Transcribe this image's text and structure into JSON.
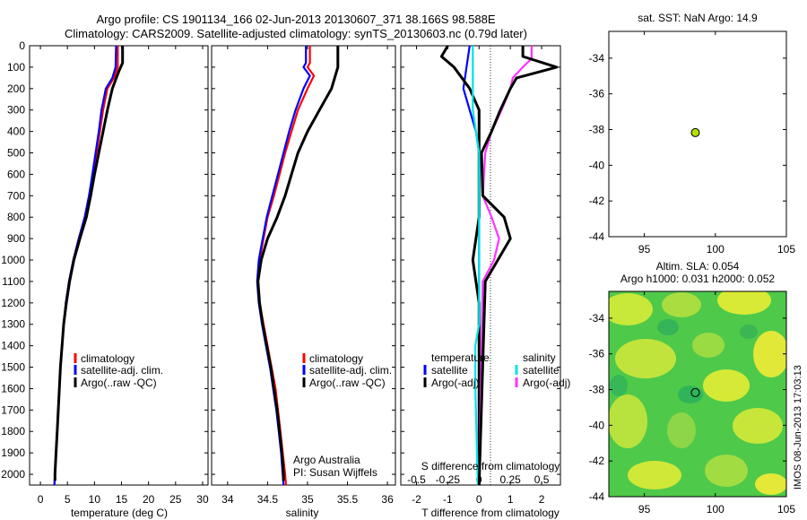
{
  "header": {
    "line1": "Argo profile: CS 1901134_166 02-Jun-2013 20130607_371 38.166S 98.588E",
    "line2": "Climatology: CARS2009. Satellite-adjusted climatology: synTS_20130603.nc (0.79d later)"
  },
  "colors": {
    "climatology": "#ff0000",
    "satellite": "#0000ff",
    "argo": "#000000",
    "salinity_sat": "#00e5e5",
    "salinity_argo": "#ff33ff",
    "marker": "#b0e000"
  },
  "credit": {
    "line1": "Argo Australia",
    "line2": "PI: Susan Wijffels"
  },
  "side_label": "IMOS 08-Jun-2013 17:03:13",
  "chart_data": [
    {
      "id": "temperature",
      "type": "line",
      "xlabel": "temperature (deg C)",
      "xlim": [
        -2,
        31
      ],
      "xticks": [
        0,
        5,
        10,
        15,
        20,
        25,
        30
      ],
      "ylim": [
        0,
        2050
      ],
      "yticks": [
        0,
        100,
        200,
        300,
        400,
        500,
        600,
        700,
        800,
        900,
        1000,
        1100,
        1200,
        1300,
        1400,
        1500,
        1600,
        1700,
        1800,
        1900,
        2000
      ],
      "legend": [
        "climatology",
        "satellite-adj. clim.",
        "Argo(..raw -QC)"
      ],
      "series": [
        {
          "name": "climatology",
          "color": "#ff0000",
          "points": [
            [
              14.3,
              0
            ],
            [
              14.3,
              100
            ],
            [
              13.6,
              150
            ],
            [
              12.4,
              200
            ],
            [
              11.6,
              300
            ],
            [
              11,
              400
            ],
            [
              10.4,
              500
            ],
            [
              9.7,
              600
            ],
            [
              9,
              700
            ],
            [
              8.2,
              800
            ],
            [
              7.1,
              900
            ],
            [
              6.1,
              1000
            ],
            [
              5.3,
              1100
            ],
            [
              4.7,
              1200
            ],
            [
              4.3,
              1300
            ],
            [
              4,
              1400
            ],
            [
              3.7,
              1500
            ],
            [
              3.5,
              1600
            ],
            [
              3.3,
              1700
            ],
            [
              3.1,
              1800
            ],
            [
              2.9,
              1900
            ],
            [
              2.7,
              2000
            ],
            [
              2.6,
              2050
            ]
          ]
        },
        {
          "name": "satellite-adj. clim.",
          "color": "#0000ff",
          "points": [
            [
              14,
              0
            ],
            [
              13.9,
              100
            ],
            [
              13.3,
              150
            ],
            [
              12.1,
              200
            ],
            [
              11.3,
              300
            ],
            [
              10.8,
              400
            ],
            [
              10.2,
              500
            ],
            [
              9.6,
              600
            ],
            [
              9,
              700
            ],
            [
              8.2,
              800
            ],
            [
              7.1,
              900
            ],
            [
              6.1,
              1000
            ],
            [
              5.3,
              1100
            ],
            [
              4.7,
              1200
            ],
            [
              4.3,
              1300
            ],
            [
              4,
              1400
            ],
            [
              3.7,
              1500
            ],
            [
              3.5,
              1600
            ],
            [
              3.3,
              1700
            ],
            [
              3.1,
              1800
            ],
            [
              2.9,
              1900
            ],
            [
              2.7,
              2000
            ],
            [
              2.6,
              2050
            ]
          ]
        },
        {
          "name": "Argo(..raw -QC)",
          "color": "#000000",
          "points": [
            [
              15.2,
              0
            ],
            [
              15.2,
              80
            ],
            [
              14.5,
              120
            ],
            [
              13.3,
              200
            ],
            [
              12.4,
              300
            ],
            [
              11.6,
              400
            ],
            [
              10.8,
              500
            ],
            [
              10,
              600
            ],
            [
              9.3,
              700
            ],
            [
              8.5,
              800
            ],
            [
              7.3,
              900
            ],
            [
              6.2,
              1000
            ],
            [
              5.4,
              1100
            ],
            [
              4.8,
              1200
            ],
            [
              4.3,
              1300
            ],
            [
              4,
              1400
            ],
            [
              3.7,
              1500
            ],
            [
              3.5,
              1600
            ],
            [
              3.3,
              1700
            ],
            [
              3.1,
              1800
            ],
            [
              2.9,
              1900
            ],
            [
              2.7,
              2000
            ],
            [
              2.7,
              2030
            ]
          ]
        }
      ]
    },
    {
      "id": "salinity",
      "type": "line",
      "xlabel": "salinity",
      "xlim": [
        33.8,
        36.1
      ],
      "xticks": [
        34,
        34.5,
        35,
        35.5,
        36
      ],
      "ylim": [
        0,
        2050
      ],
      "legend": [
        "climatology",
        "satellite-adj. clim.",
        "Argo(..raw -QC)"
      ],
      "series": [
        {
          "name": "climatology",
          "color": "#ff0000",
          "points": [
            [
              35.03,
              0
            ],
            [
              35.03,
              80
            ],
            [
              35,
              100
            ],
            [
              35.08,
              140
            ],
            [
              35,
              200
            ],
            [
              34.88,
              300
            ],
            [
              34.8,
              400
            ],
            [
              34.72,
              500
            ],
            [
              34.65,
              600
            ],
            [
              34.58,
              700
            ],
            [
              34.5,
              800
            ],
            [
              34.45,
              900
            ],
            [
              34.4,
              1000
            ],
            [
              34.38,
              1100
            ],
            [
              34.4,
              1200
            ],
            [
              34.45,
              1300
            ],
            [
              34.5,
              1400
            ],
            [
              34.55,
              1500
            ],
            [
              34.6,
              1600
            ],
            [
              34.63,
              1700
            ],
            [
              34.66,
              1800
            ],
            [
              34.69,
              1900
            ],
            [
              34.72,
              2000
            ],
            [
              34.73,
              2050
            ]
          ]
        },
        {
          "name": "satellite-adj. clim.",
          "color": "#0000ff",
          "points": [
            [
              34.98,
              0
            ],
            [
              34.98,
              80
            ],
            [
              34.95,
              100
            ],
            [
              35.03,
              140
            ],
            [
              34.95,
              200
            ],
            [
              34.85,
              300
            ],
            [
              34.77,
              400
            ],
            [
              34.7,
              500
            ],
            [
              34.63,
              600
            ],
            [
              34.56,
              700
            ],
            [
              34.49,
              800
            ],
            [
              34.44,
              900
            ],
            [
              34.39,
              1000
            ],
            [
              34.37,
              1100
            ],
            [
              34.39,
              1200
            ],
            [
              34.43,
              1300
            ],
            [
              34.48,
              1400
            ],
            [
              34.53,
              1500
            ],
            [
              34.57,
              1600
            ],
            [
              34.61,
              1700
            ],
            [
              34.64,
              1800
            ],
            [
              34.67,
              1900
            ],
            [
              34.69,
              2000
            ],
            [
              34.7,
              2050
            ]
          ]
        },
        {
          "name": "Argo(..raw -QC)",
          "color": "#000000",
          "points": [
            [
              35.38,
              0
            ],
            [
              35.38,
              100
            ],
            [
              35.3,
              200
            ],
            [
              35.15,
              300
            ],
            [
              35.0,
              400
            ],
            [
              34.88,
              500
            ],
            [
              34.8,
              600
            ],
            [
              34.72,
              700
            ],
            [
              34.62,
              800
            ],
            [
              34.5,
              900
            ],
            [
              34.42,
              1000
            ],
            [
              34.38,
              1100
            ],
            [
              34.4,
              1200
            ],
            [
              34.44,
              1300
            ],
            [
              34.49,
              1400
            ],
            [
              34.54,
              1500
            ],
            [
              34.58,
              1600
            ],
            [
              34.62,
              1700
            ],
            [
              34.65,
              1800
            ],
            [
              34.68,
              1900
            ],
            [
              34.7,
              2000
            ],
            [
              34.7,
              2030
            ]
          ]
        }
      ]
    },
    {
      "id": "differences",
      "type": "line",
      "xlabel": "T difference from climatology",
      "xlabel_top": "S difference from climatology",
      "xlim": [
        -2.5,
        2.6
      ],
      "xticks": [
        -2,
        -1,
        0,
        1,
        2
      ],
      "xticks_top": [
        "-0.5",
        "-0.25",
        "0",
        "0.25",
        "0.5"
      ],
      "ylim": [
        0,
        2050
      ],
      "legend_groups": [
        {
          "title": "temperature",
          "items": [
            "satellite",
            "Argo(-adj)"
          ]
        },
        {
          "title": "salinity",
          "items": [
            "satellite",
            "Argo(-adj)"
          ]
        }
      ],
      "series": [
        {
          "name": "temperature satellite",
          "color": "#0000ff",
          "points": [
            [
              -0.3,
              0
            ],
            [
              -0.4,
              100
            ],
            [
              -0.5,
              200
            ],
            [
              -0.3,
              300
            ],
            [
              -0.1,
              400
            ],
            [
              0,
              500
            ],
            [
              0,
              800
            ],
            [
              0,
              2050
            ]
          ]
        },
        {
          "name": "temperature Argo(-adj)",
          "color": "#000000",
          "points": [
            [
              -1,
              0
            ],
            [
              -1.2,
              50
            ],
            [
              -0.8,
              100
            ],
            [
              -0.3,
              200
            ],
            [
              0,
              300
            ],
            [
              0,
              800
            ],
            [
              -0.2,
              1000
            ],
            [
              0,
              1200
            ],
            [
              0,
              2050
            ]
          ]
        },
        {
          "name": "salinity satellite",
          "color": "#00e5e5",
          "points": [
            [
              -0.05,
              0
            ],
            [
              -0.05,
              100
            ],
            [
              -0.05,
              300
            ],
            [
              0,
              500
            ],
            [
              0,
              1300
            ],
            [
              -0.03,
              1400
            ],
            [
              -0.03,
              1600
            ],
            [
              -0.01,
              2050
            ]
          ]
        },
        {
          "name": "salinity Argo(-adj)",
          "color": "#ff33ff",
          "points": [
            [
              0.42,
              0
            ],
            [
              0.42,
              60
            ],
            [
              0.35,
              100
            ],
            [
              0.27,
              150
            ],
            [
              0.25,
              200
            ],
            [
              0.18,
              300
            ],
            [
              0.1,
              400
            ],
            [
              0.05,
              500
            ],
            [
              0.03,
              700
            ],
            [
              0.1,
              800
            ],
            [
              0.16,
              900
            ],
            [
              0.12,
              1000
            ],
            [
              0.03,
              1100
            ],
            [
              0,
              2050
            ]
          ]
        },
        {
          "name": "salinity Argo raw",
          "color": "#000000",
          "points": [
            [
              0.35,
              0
            ],
            [
              0.35,
              50
            ],
            [
              0.62,
              100
            ],
            [
              0.3,
              150
            ],
            [
              0.25,
              200
            ],
            [
              0.17,
              300
            ],
            [
              0.1,
              400
            ],
            [
              0.02,
              500
            ],
            [
              0.03,
              700
            ],
            [
              0.2,
              800
            ],
            [
              0.25,
              900
            ],
            [
              0.15,
              1000
            ],
            [
              0.05,
              1100
            ],
            [
              0,
              2050
            ]
          ]
        }
      ]
    },
    {
      "id": "sst_map",
      "type": "scatter",
      "title": "sat. SST: NaN Argo: 14.9",
      "xlim": [
        92.5,
        105
      ],
      "xticks": [
        95,
        100,
        105
      ],
      "ylim": [
        -44,
        -32.5
      ],
      "yticks": [
        -34,
        -36,
        -38,
        -40,
        -42,
        -44
      ],
      "points": [
        [
          98.59,
          -38.17
        ]
      ]
    },
    {
      "id": "sla_map",
      "type": "heatmap",
      "title": "Altim. SLA: 0.054",
      "subtitle": "Argo h1000: 0.031 h2000: 0.052",
      "xlim": [
        92.5,
        105
      ],
      "xticks": [
        95,
        100,
        105
      ],
      "ylim": [
        -44,
        -32.5
      ],
      "yticks": [
        -34,
        -36,
        -38,
        -40,
        -42,
        -44
      ],
      "points": [
        [
          98.59,
          -38.17
        ]
      ]
    }
  ]
}
